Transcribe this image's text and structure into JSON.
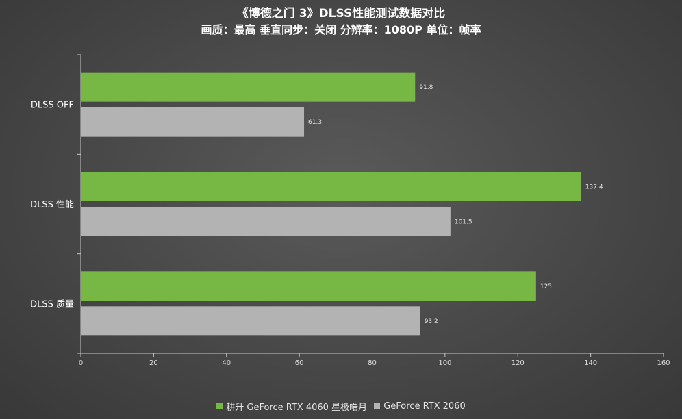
{
  "chart_data": {
    "type": "bar",
    "orientation": "horizontal",
    "title": "《博德之门 3》DLSS性能测试数据对比",
    "subtitle": "画质：最高 垂直同步：关闭 分辨率：1080P 单位：帧率",
    "categories": [
      "DLSS OFF",
      "DLSS 性能",
      "DLSS 质量"
    ],
    "series": [
      {
        "name": "耕升 GeForce RTX 4060 星极皓月",
        "color": "#76b843",
        "values": [
          91.8,
          137.4,
          125
        ]
      },
      {
        "name": "GeForce RTX 2060",
        "color": "#b3b3b3",
        "values": [
          61.3,
          101.5,
          93.2
        ]
      }
    ],
    "value_labels": [
      [
        "91.8",
        "137.4",
        "125"
      ],
      [
        "61.3",
        "101.5",
        "93.2"
      ]
    ],
    "xlim": [
      0,
      160
    ],
    "xticks": [
      0,
      20,
      40,
      60,
      80,
      100,
      120,
      140,
      160
    ],
    "grid": false,
    "legend_position": "bottom"
  }
}
